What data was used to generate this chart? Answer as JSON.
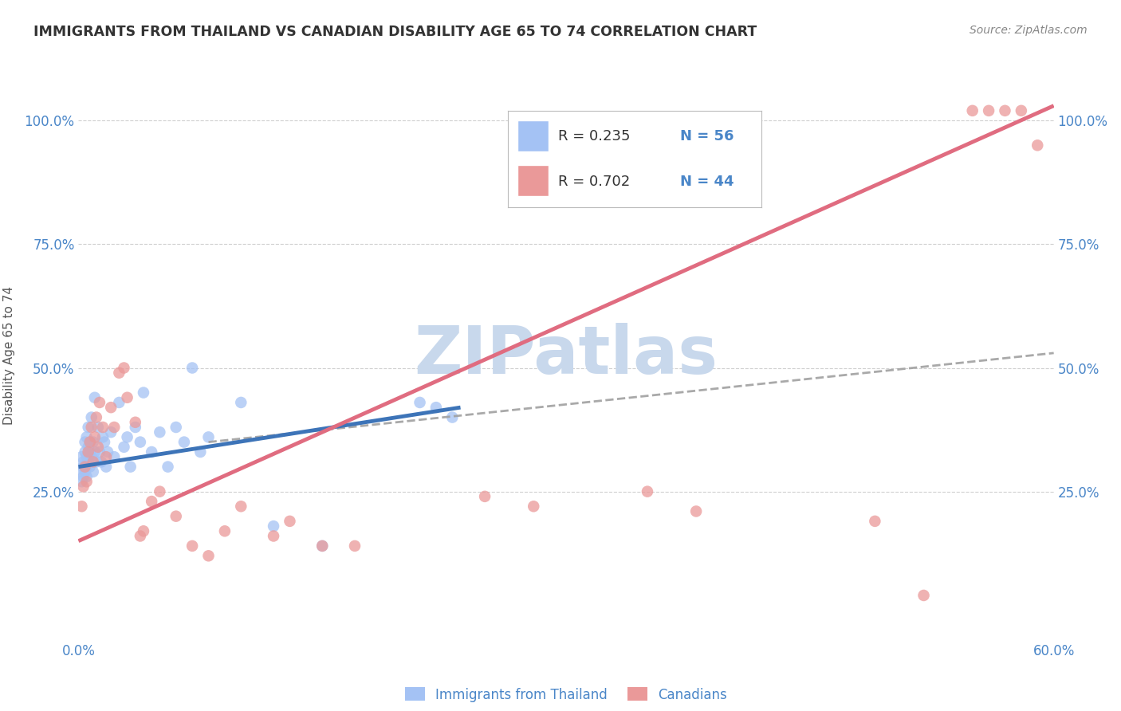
{
  "title": "IMMIGRANTS FROM THAILAND VS CANADIAN DISABILITY AGE 65 TO 74 CORRELATION CHART",
  "source": "Source: ZipAtlas.com",
  "ylabel_label": "Disability Age 65 to 74",
  "x_ticklabels": [
    "0.0%",
    "",
    "",
    "",
    "",
    "",
    "60.0%"
  ],
  "y_ticklabels": [
    "",
    "25.0%",
    "50.0%",
    "75.0%",
    "100.0%"
  ],
  "xlim": [
    0.0,
    0.6
  ],
  "ylim": [
    -0.05,
    1.1
  ],
  "x_ticks": [
    0.0,
    0.1,
    0.2,
    0.3,
    0.4,
    0.5,
    0.6
  ],
  "y_ticks": [
    0.0,
    0.25,
    0.5,
    0.75,
    1.0
  ],
  "blue_color": "#a4c2f4",
  "pink_color": "#ea9999",
  "blue_line_color": "#3d74b8",
  "pink_line_color": "#e06c80",
  "dashed_line_color": "#a0a0a0",
  "text_color": "#4a86c8",
  "background_color": "#ffffff",
  "grid_color": "#d0d0d0",
  "title_color": "#333333",
  "source_color": "#888888",
  "watermark_color": "#c8d8ec",
  "legend_R1": "R = 0.235",
  "legend_N1": "N = 56",
  "legend_R2": "R = 0.702",
  "legend_N2": "N = 44",
  "legend_label1": "Immigrants from Thailand",
  "legend_label2": "Canadians",
  "blue_scatter_x": [
    0.001,
    0.002,
    0.002,
    0.003,
    0.003,
    0.003,
    0.004,
    0.004,
    0.004,
    0.005,
    0.005,
    0.005,
    0.005,
    0.006,
    0.006,
    0.006,
    0.007,
    0.007,
    0.007,
    0.008,
    0.008,
    0.009,
    0.009,
    0.01,
    0.01,
    0.011,
    0.012,
    0.013,
    0.014,
    0.015,
    0.016,
    0.017,
    0.018,
    0.02,
    0.022,
    0.025,
    0.028,
    0.03,
    0.032,
    0.035,
    0.038,
    0.04,
    0.045,
    0.05,
    0.055,
    0.06,
    0.065,
    0.07,
    0.075,
    0.08,
    0.1,
    0.12,
    0.15,
    0.21,
    0.22,
    0.23
  ],
  "blue_scatter_y": [
    0.29,
    0.32,
    0.27,
    0.31,
    0.28,
    0.3,
    0.35,
    0.29,
    0.33,
    0.3,
    0.32,
    0.28,
    0.36,
    0.31,
    0.38,
    0.34,
    0.3,
    0.35,
    0.33,
    0.32,
    0.4,
    0.35,
    0.29,
    0.33,
    0.44,
    0.31,
    0.38,
    0.33,
    0.31,
    0.36,
    0.35,
    0.3,
    0.33,
    0.37,
    0.32,
    0.43,
    0.34,
    0.36,
    0.3,
    0.38,
    0.35,
    0.45,
    0.33,
    0.37,
    0.3,
    0.38,
    0.35,
    0.5,
    0.33,
    0.36,
    0.43,
    0.18,
    0.14,
    0.43,
    0.42,
    0.4
  ],
  "pink_scatter_x": [
    0.002,
    0.003,
    0.004,
    0.005,
    0.006,
    0.007,
    0.008,
    0.009,
    0.01,
    0.011,
    0.012,
    0.013,
    0.015,
    0.017,
    0.02,
    0.022,
    0.025,
    0.028,
    0.03,
    0.035,
    0.038,
    0.04,
    0.045,
    0.05,
    0.06,
    0.07,
    0.08,
    0.09,
    0.1,
    0.12,
    0.13,
    0.15,
    0.17,
    0.25,
    0.28,
    0.35,
    0.38,
    0.49,
    0.52,
    0.55,
    0.56,
    0.57,
    0.58,
    0.59
  ],
  "pink_scatter_y": [
    0.22,
    0.26,
    0.3,
    0.27,
    0.33,
    0.35,
    0.38,
    0.31,
    0.36,
    0.4,
    0.34,
    0.43,
    0.38,
    0.32,
    0.42,
    0.38,
    0.49,
    0.5,
    0.44,
    0.39,
    0.16,
    0.17,
    0.23,
    0.25,
    0.2,
    0.14,
    0.12,
    0.17,
    0.22,
    0.16,
    0.19,
    0.14,
    0.14,
    0.24,
    0.22,
    0.25,
    0.21,
    0.19,
    0.04,
    1.02,
    1.02,
    1.02,
    1.02,
    0.95
  ],
  "blue_line_x": [
    0.0,
    0.235
  ],
  "blue_line_y": [
    0.3,
    0.42
  ],
  "pink_line_x": [
    0.0,
    0.6
  ],
  "pink_line_y": [
    0.15,
    1.03
  ],
  "dashed_line_x": [
    0.08,
    0.6
  ],
  "dashed_line_y": [
    0.35,
    0.53
  ]
}
